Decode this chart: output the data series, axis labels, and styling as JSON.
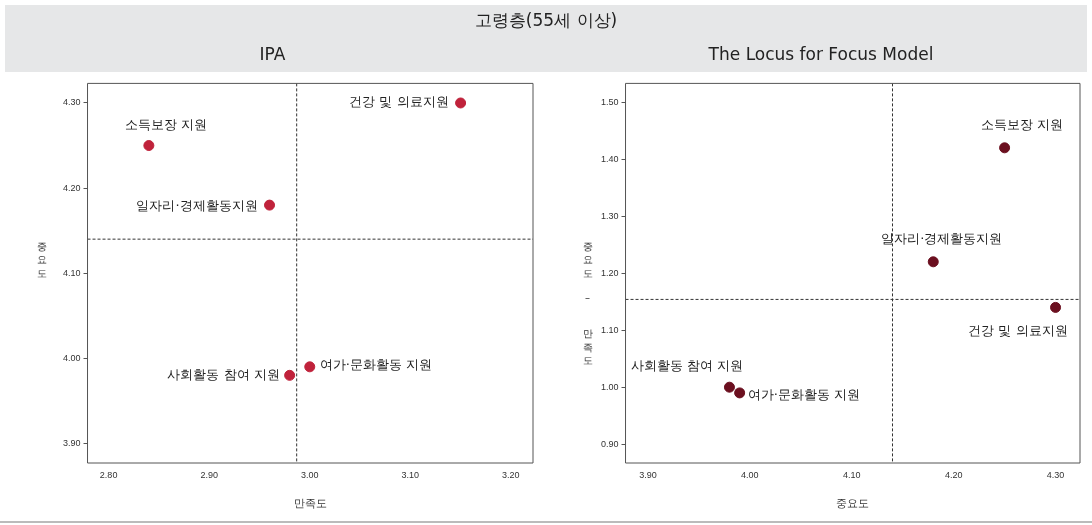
{
  "chart_data": [
    {
      "type": "scatter",
      "title": "고령층(55세 이상)",
      "subtitle": "IPA",
      "xlabel": "만족도",
      "ylabel": "중요도",
      "x": [
        3.15,
        2.84,
        2.96,
        2.98,
        3.0
      ],
      "values": [
        4.3,
        4.25,
        4.18,
        3.98,
        3.99
      ],
      "color": "#c0223b",
      "marker": "circle",
      "grid": false,
      "legend": false,
      "xlim": [
        2.779,
        3.222
      ],
      "ylim": [
        3.877,
        4.323
      ],
      "xticks": [
        {
          "value": 2.8,
          "label": "2.80"
        },
        {
          "value": 2.9,
          "label": "2.90"
        },
        {
          "value": 3.0,
          "label": "3.00"
        },
        {
          "value": 3.1,
          "label": "3.10"
        },
        {
          "value": 3.2,
          "label": "3.20"
        }
      ],
      "yticks": [
        {
          "value": 3.9,
          "label": "3.90"
        },
        {
          "value": 4.0,
          "label": "4.00"
        },
        {
          "value": 4.1,
          "label": "4.10"
        },
        {
          "value": 4.2,
          "label": "4.20"
        },
        {
          "value": 4.3,
          "label": "4.30"
        }
      ],
      "ref_lines": [
        {
          "axis": "x",
          "value": 2.987,
          "line_style": "dashed"
        },
        {
          "axis": "y",
          "value": 4.14,
          "line_style": "dashed"
        }
      ],
      "annotations": [
        {
          "text": "건강 및 의료지원",
          "x": 3.15,
          "y": 4.3
        },
        {
          "text": "소득보장 지원",
          "x": 2.84,
          "y": 4.25
        },
        {
          "text": "일자리·경제활동지원",
          "x": 2.96,
          "y": 4.18
        },
        {
          "text": "사회활동 참여 지원",
          "x": 2.98,
          "y": 3.98
        },
        {
          "text": "여가·문화활동 지원",
          "x": 3.0,
          "y": 3.99
        }
      ]
    },
    {
      "type": "scatter",
      "subtitle": "The Locus for Focus Model",
      "xlabel": "중요도",
      "ylabel": "중요도 – 만족도",
      "x": [
        4.25,
        4.18,
        4.3,
        3.98,
        3.99
      ],
      "values": [
        1.42,
        1.22,
        1.14,
        1.0,
        0.99
      ],
      "color": "#6b0f1f",
      "marker": "circle",
      "grid": false,
      "legend": false,
      "xlim": [
        3.878,
        4.324
      ],
      "ylim": [
        0.867,
        1.533
      ],
      "xticks": [
        {
          "value": 3.9,
          "label": "3.90"
        },
        {
          "value": 4.0,
          "label": "4.00"
        },
        {
          "value": 4.1,
          "label": "4.10"
        },
        {
          "value": 4.2,
          "label": "4.20"
        },
        {
          "value": 4.3,
          "label": "4.30"
        }
      ],
      "yticks": [
        {
          "value": 0.9,
          "label": "0.90"
        },
        {
          "value": 1.0,
          "label": "1.00"
        },
        {
          "value": 1.1,
          "label": "1.10"
        },
        {
          "value": 1.2,
          "label": "1.20"
        },
        {
          "value": 1.3,
          "label": "1.30"
        },
        {
          "value": 1.4,
          "label": "1.40"
        },
        {
          "value": 1.5,
          "label": "1.50"
        }
      ],
      "ref_lines": [
        {
          "axis": "x",
          "value": 4.14,
          "line_style": "dashed"
        },
        {
          "axis": "y",
          "value": 1.154,
          "line_style": "dashed"
        }
      ],
      "annotations": [
        {
          "text": "소득보장 지원",
          "x": 4.25,
          "y": 1.42
        },
        {
          "text": "일자리·경제활동지원",
          "x": 4.18,
          "y": 1.22
        },
        {
          "text": "건강 및 의료지원",
          "x": 4.3,
          "y": 1.14
        },
        {
          "text": "사회활동 참여 지원",
          "x": 3.98,
          "y": 1.0
        },
        {
          "text": "여가·문화활동 지원",
          "x": 3.99,
          "y": 0.99
        }
      ]
    }
  ]
}
